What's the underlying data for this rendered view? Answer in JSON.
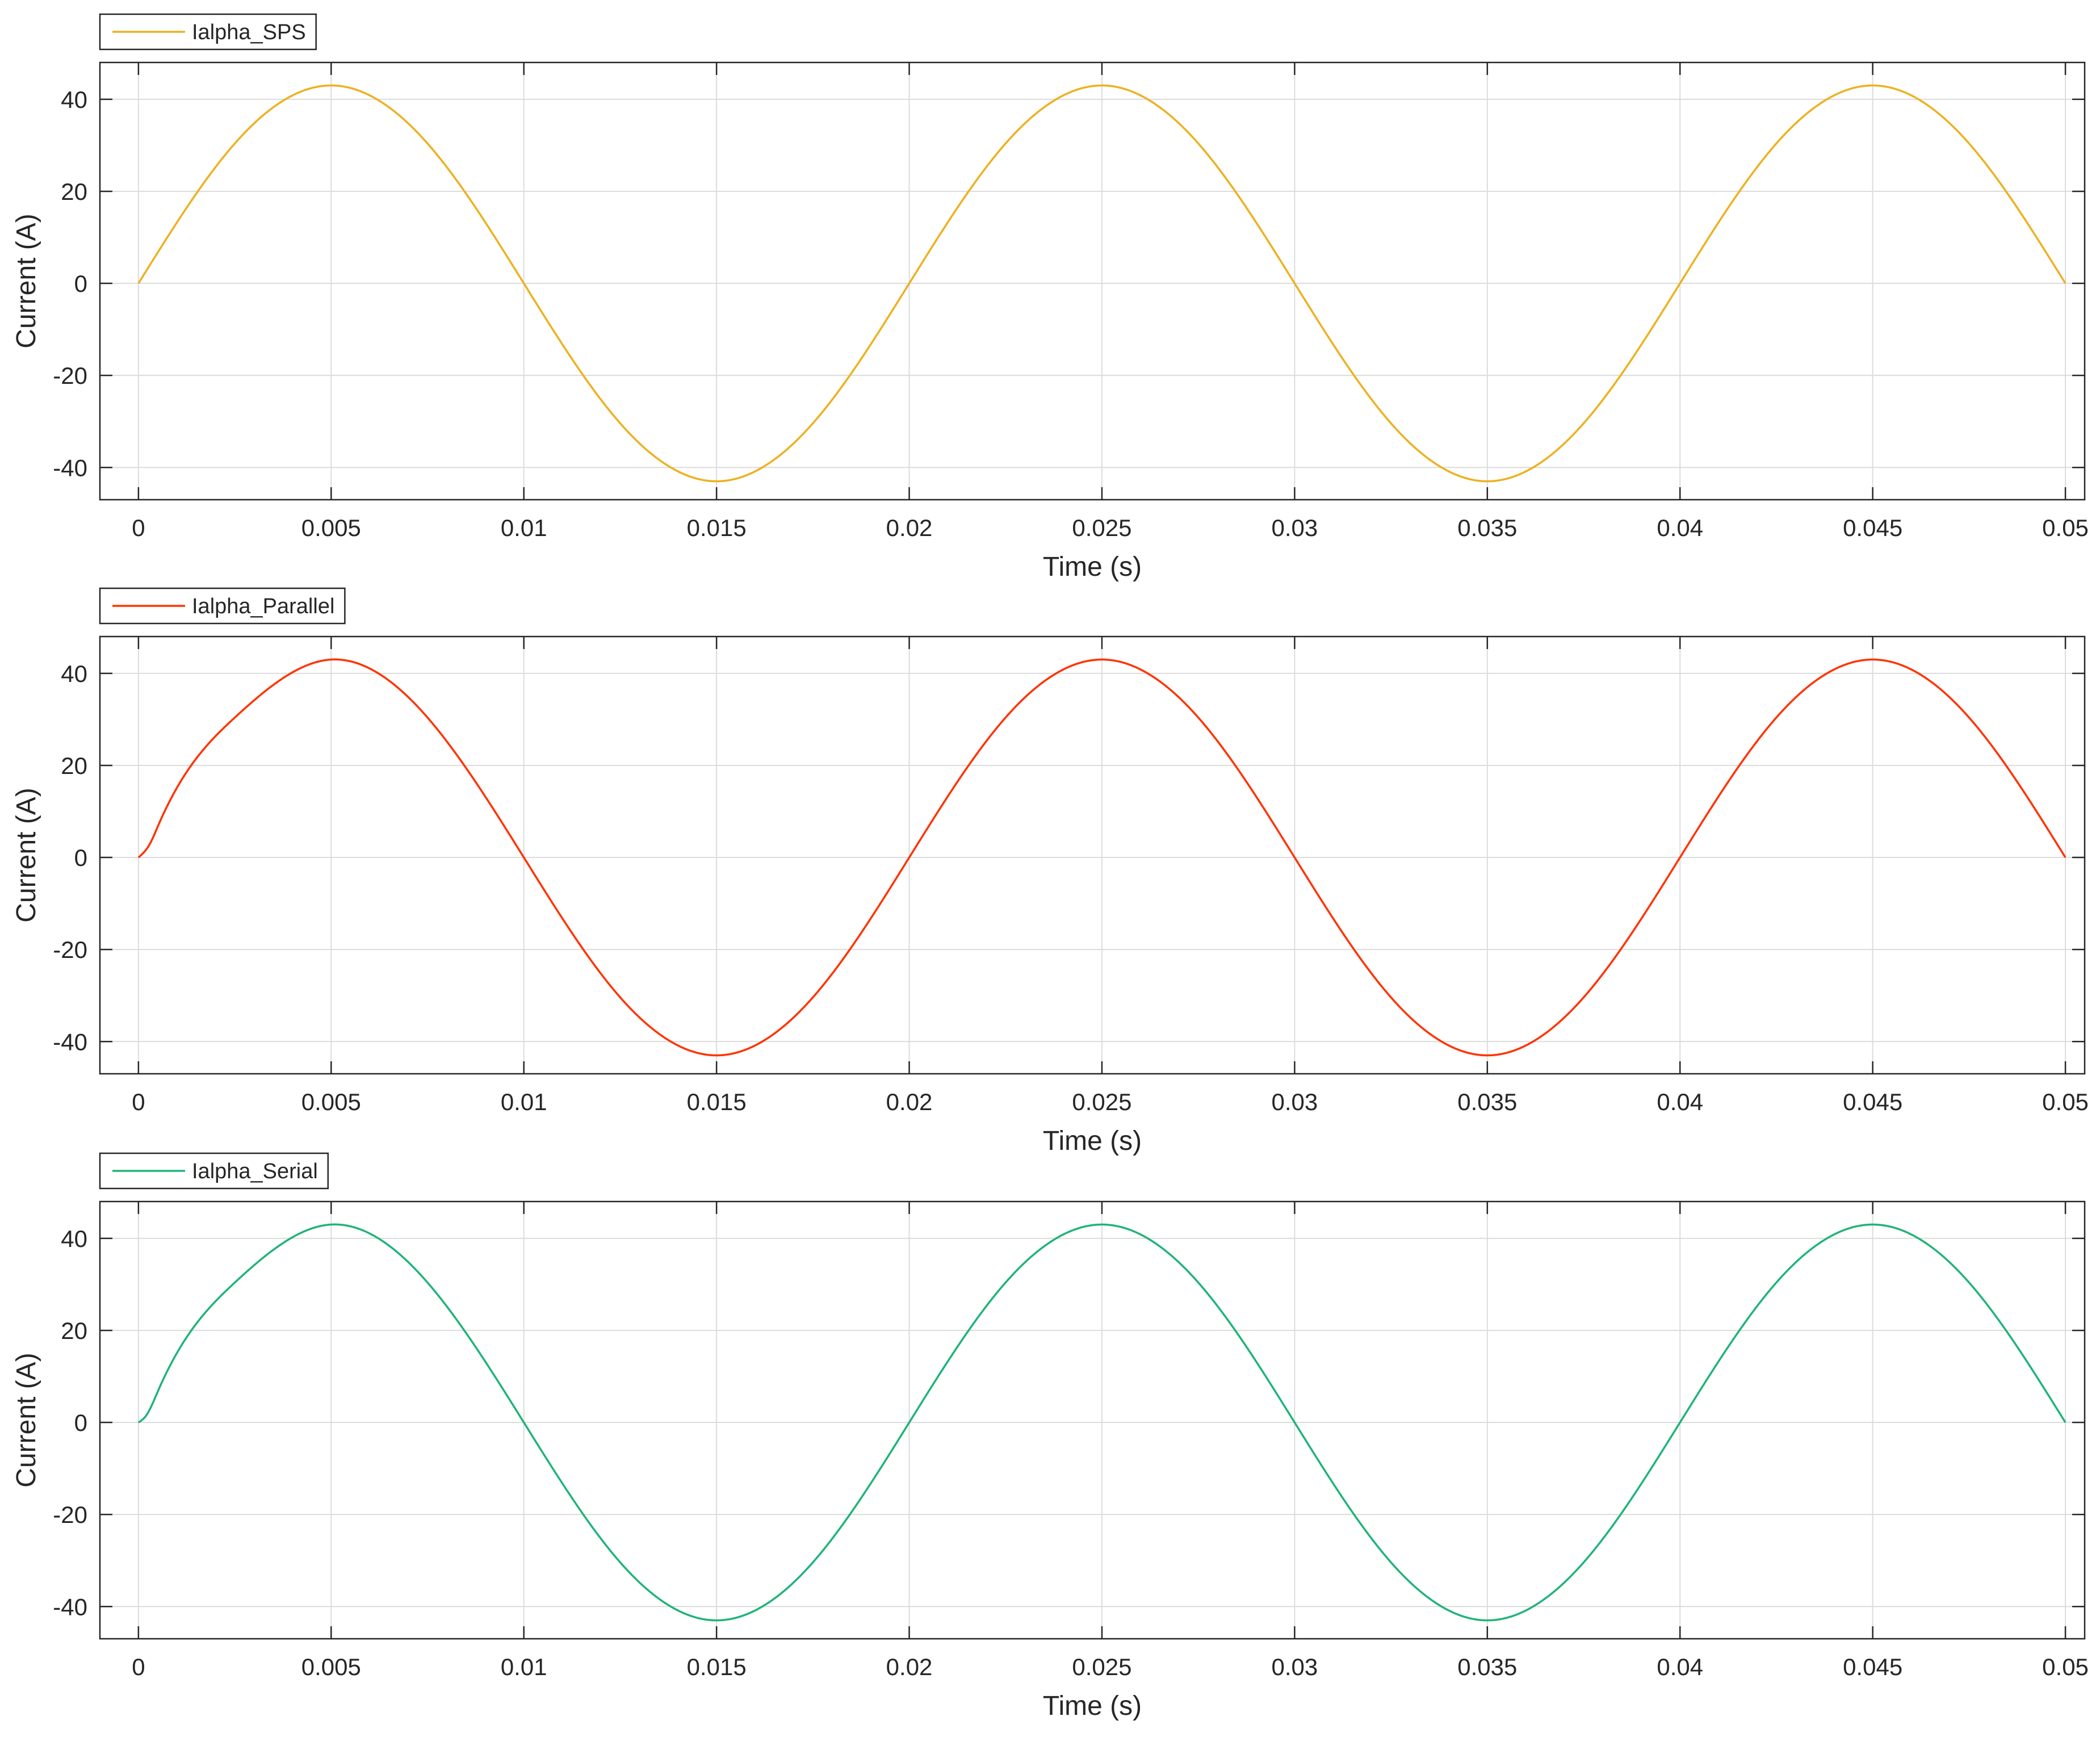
{
  "chart_data": [
    {
      "type": "line",
      "title": "",
      "xlabel": "Time (s)",
      "ylabel": "Current (A)",
      "xlim": [
        -0.001,
        0.0505
      ],
      "ylim": [
        -47,
        48
      ],
      "xticks": [
        0,
        0.005,
        0.01,
        0.015,
        0.02,
        0.025,
        0.03,
        0.035,
        0.04,
        0.045,
        0.05
      ],
      "xtick_labels": [
        "0",
        "0.005",
        "0.01",
        "0.015",
        "0.02",
        "0.025",
        "0.03",
        "0.035",
        "0.04",
        "0.045",
        "0.05"
      ],
      "yticks": [
        -40,
        -20,
        0,
        20,
        40
      ],
      "ytick_labels": [
        "-40",
        "-20",
        "0",
        "20",
        "40"
      ],
      "grid": true,
      "legend_position": "top-left",
      "series": [
        {
          "name": "Ialpha_SPS",
          "color": "#EDB120",
          "x": [
            0,
            0.0025,
            0.005,
            0.0075,
            0.01,
            0.0125,
            0.015,
            0.0175,
            0.02,
            0.0225,
            0.025,
            0.0275,
            0.03,
            0.0325,
            0.035,
            0.0375,
            0.04,
            0.0425,
            0.045,
            0.0475,
            0.05
          ],
          "y": [
            0,
            30.4,
            43,
            30.4,
            0,
            -30.4,
            -43,
            -30.4,
            0,
            30.4,
            43,
            30.4,
            0,
            -30.4,
            -43,
            -30.4,
            0,
            30.4,
            43,
            30.4,
            0
          ]
        }
      ]
    },
    {
      "type": "line",
      "title": "",
      "xlabel": "Time (s)",
      "ylabel": "Current (A)",
      "xlim": [
        -0.001,
        0.0505
      ],
      "ylim": [
        -47,
        48
      ],
      "xticks": [
        0,
        0.005,
        0.01,
        0.015,
        0.02,
        0.025,
        0.03,
        0.035,
        0.04,
        0.045,
        0.05
      ],
      "xtick_labels": [
        "0",
        "0.005",
        "0.01",
        "0.015",
        "0.02",
        "0.025",
        "0.03",
        "0.035",
        "0.04",
        "0.045",
        "0.05"
      ],
      "yticks": [
        -40,
        -20,
        0,
        20,
        40
      ],
      "ytick_labels": [
        "-40",
        "-20",
        "0",
        "20",
        "40"
      ],
      "grid": true,
      "legend_position": "top-left",
      "series": [
        {
          "name": "Ialpha_Parallel",
          "color": "#FF3300",
          "x": [
            0,
            0.0003,
            0.0005,
            0.0025,
            0.005,
            0.0075,
            0.01,
            0.0125,
            0.015,
            0.0175,
            0.02,
            0.0225,
            0.025,
            0.0275,
            0.03,
            0.0325,
            0.035,
            0.0375,
            0.04,
            0.0425,
            0.045,
            0.0475,
            0.05
          ],
          "y": [
            0,
            3,
            6.7,
            30.4,
            43,
            30.4,
            0,
            -30.4,
            -43,
            -30.4,
            0,
            30.4,
            43,
            30.4,
            0,
            -30.4,
            -43,
            -30.4,
            0,
            30.4,
            43,
            30.4,
            0
          ]
        }
      ]
    },
    {
      "type": "line",
      "title": "",
      "xlabel": "Time (s)",
      "ylabel": "Current (A)",
      "xlim": [
        -0.001,
        0.0505
      ],
      "ylim": [
        -47,
        48
      ],
      "xticks": [
        0,
        0.005,
        0.01,
        0.015,
        0.02,
        0.025,
        0.03,
        0.035,
        0.04,
        0.045,
        0.05
      ],
      "xtick_labels": [
        "0",
        "0.005",
        "0.01",
        "0.015",
        "0.02",
        "0.025",
        "0.03",
        "0.035",
        "0.04",
        "0.045",
        "0.05"
      ],
      "yticks": [
        -40,
        -20,
        0,
        20,
        40
      ],
      "ytick_labels": [
        "-40",
        "-20",
        "0",
        "20",
        "40"
      ],
      "grid": true,
      "legend_position": "top-left",
      "series": [
        {
          "name": "Ialpha_Serial",
          "color": "#20B37A",
          "x": [
            0,
            0.0002,
            0.0005,
            0.0025,
            0.005,
            0.0075,
            0.01,
            0.0125,
            0.015,
            0.0175,
            0.02,
            0.0225,
            0.025,
            0.0275,
            0.03,
            0.0325,
            0.035,
            0.0375,
            0.04,
            0.0425,
            0.045,
            0.0475,
            0.05
          ],
          "y": [
            0,
            1.5,
            6.7,
            30.4,
            43,
            30.4,
            0,
            -30.4,
            -43,
            -30.4,
            0,
            30.4,
            43,
            30.4,
            0,
            -30.4,
            -43,
            -30.4,
            0,
            30.4,
            43,
            30.4,
            0
          ]
        }
      ]
    }
  ]
}
